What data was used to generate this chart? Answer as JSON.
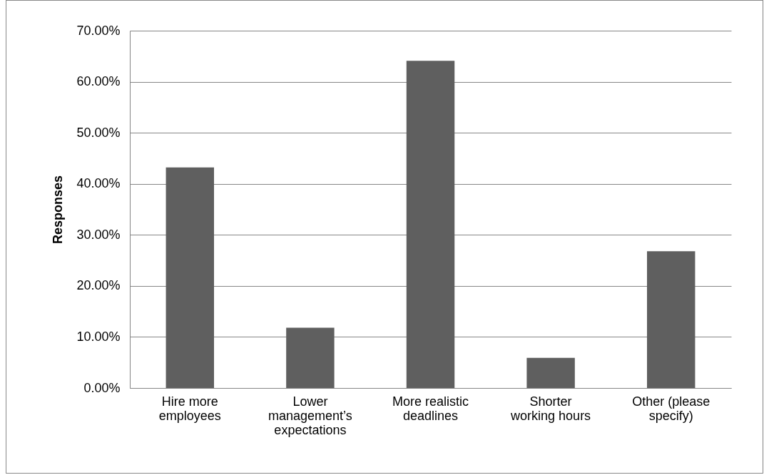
{
  "chart_data": {
    "type": "bar",
    "ylabel": "Responses",
    "categories": [
      "Hire more employees",
      "Lower management’s expectations",
      "More realistic deadlines",
      "Shorter working hours",
      "Other (please specify)"
    ],
    "values": [
      43.2,
      11.8,
      64.1,
      5.9,
      26.8
    ],
    "color": "#5f5f5f",
    "ylim": [
      0,
      70
    ],
    "yticks": [
      {
        "value": 0,
        "label": "0.00%"
      },
      {
        "value": 10,
        "label": "10.00%"
      },
      {
        "value": 20,
        "label": "20.00%"
      },
      {
        "value": 30,
        "label": "30.00%"
      },
      {
        "value": 40,
        "label": "40.00%"
      },
      {
        "value": 50,
        "label": "50.00%"
      },
      {
        "value": 60,
        "label": "60.00%"
      },
      {
        "value": 70,
        "label": "70.00%"
      }
    ],
    "grid": "y"
  }
}
